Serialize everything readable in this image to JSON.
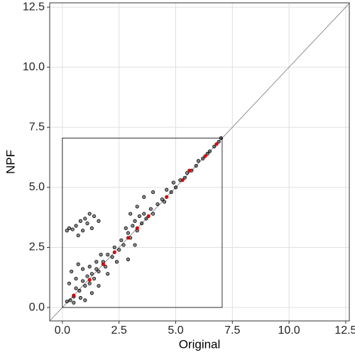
{
  "chart_data": {
    "type": "scatter",
    "x_label": "Original",
    "y_label": "NPF",
    "xlim": [
      -0.56,
      12.66
    ],
    "ylim": [
      -0.56,
      12.68
    ],
    "xticks": [
      {
        "value": 0,
        "label": "0.0"
      },
      {
        "value": 2.5,
        "label": "2.5"
      },
      {
        "value": 5,
        "label": "5.0"
      },
      {
        "value": 7.5,
        "label": "7.5"
      },
      {
        "value": 10,
        "label": "10.0"
      },
      {
        "value": 12.5,
        "label": "12.5"
      }
    ],
    "yticks": [
      {
        "value": 0,
        "label": "0.0"
      },
      {
        "value": 2.5,
        "label": "2.5"
      },
      {
        "value": 5,
        "label": "5.0"
      },
      {
        "value": 7.5,
        "label": "7.5"
      },
      {
        "value": 10,
        "label": "10.0"
      },
      {
        "value": 12.5,
        "label": "12.5"
      }
    ],
    "grid": true,
    "reference_line": {
      "x": [
        -0.56,
        12.66
      ],
      "y": [
        -0.56,
        12.66
      ]
    },
    "box": {
      "x": [
        0,
        7.05
      ],
      "y": [
        0,
        7.05
      ]
    },
    "series": [
      {
        "color": "#000000",
        "x": [
          0.2,
          0.35,
          0.5,
          0.6,
          0.75,
          0.9,
          1.0,
          1.1,
          1.2,
          1.3,
          1.4,
          1.5,
          1.6,
          1.8,
          1.9,
          2.0,
          2.2,
          2.3,
          2.5,
          2.6,
          2.7,
          2.9,
          3.0,
          3.1,
          3.2,
          3.3,
          3.4,
          3.5,
          3.6,
          3.7,
          3.9,
          4.0,
          4.2,
          4.4,
          4.5,
          4.6,
          4.8,
          4.9,
          5.0,
          5.2,
          5.4,
          5.5,
          5.7,
          5.9,
          6.0,
          6.2,
          6.4,
          6.5,
          6.7,
          6.9,
          7.0,
          0.2,
          0.3,
          0.45,
          0.6,
          0.8,
          0.9,
          1.0,
          1.2,
          1.4,
          1.6,
          0.7,
          1.1,
          1.3,
          0.3,
          0.4,
          0.5,
          0.6,
          0.7,
          0.8,
          0.9,
          1.0,
          1.2,
          1.3,
          1.5,
          1.6,
          1.7,
          2.0,
          2.4,
          2.8,
          3.0,
          3.3,
          3.6,
          4.0,
          2.9,
          3.2
        ],
        "y": [
          0.25,
          0.3,
          0.45,
          0.8,
          0.7,
          1.1,
          0.9,
          1.3,
          1.0,
          1.4,
          1.2,
          1.6,
          1.5,
          1.9,
          1.7,
          2.2,
          2.1,
          2.5,
          2.4,
          2.8,
          2.6,
          3.1,
          2.9,
          3.4,
          3.6,
          3.2,
          3.8,
          3.5,
          3.9,
          3.7,
          4.1,
          3.9,
          4.3,
          4.5,
          4.4,
          4.9,
          4.8,
          5.2,
          5.0,
          5.3,
          5.4,
          5.6,
          5.7,
          5.9,
          6.1,
          6.2,
          6.4,
          6.5,
          6.7,
          6.9,
          7.05,
          3.2,
          3.3,
          3.25,
          3.4,
          3.6,
          3.2,
          3.7,
          3.9,
          3.8,
          3.6,
          3.0,
          3.5,
          3.3,
          1.0,
          1.5,
          0.2,
          1.2,
          1.8,
          0.4,
          1.6,
          0.3,
          1.7,
          0.6,
          1.9,
          0.9,
          2.2,
          1.4,
          1.9,
          3.3,
          3.9,
          4.2,
          4.6,
          4.8,
          2.0,
          2.6
        ]
      },
      {
        "color": "#cc0000",
        "x": [
          0.5,
          1.2,
          1.8,
          2.3,
          2.9,
          3.3,
          3.8,
          4.6,
          5.3,
          5.6,
          6.3,
          6.8
        ],
        "y": [
          0.5,
          1.15,
          1.8,
          2.3,
          2.9,
          3.3,
          3.8,
          4.6,
          5.3,
          5.7,
          6.3,
          6.8
        ]
      }
    ]
  }
}
